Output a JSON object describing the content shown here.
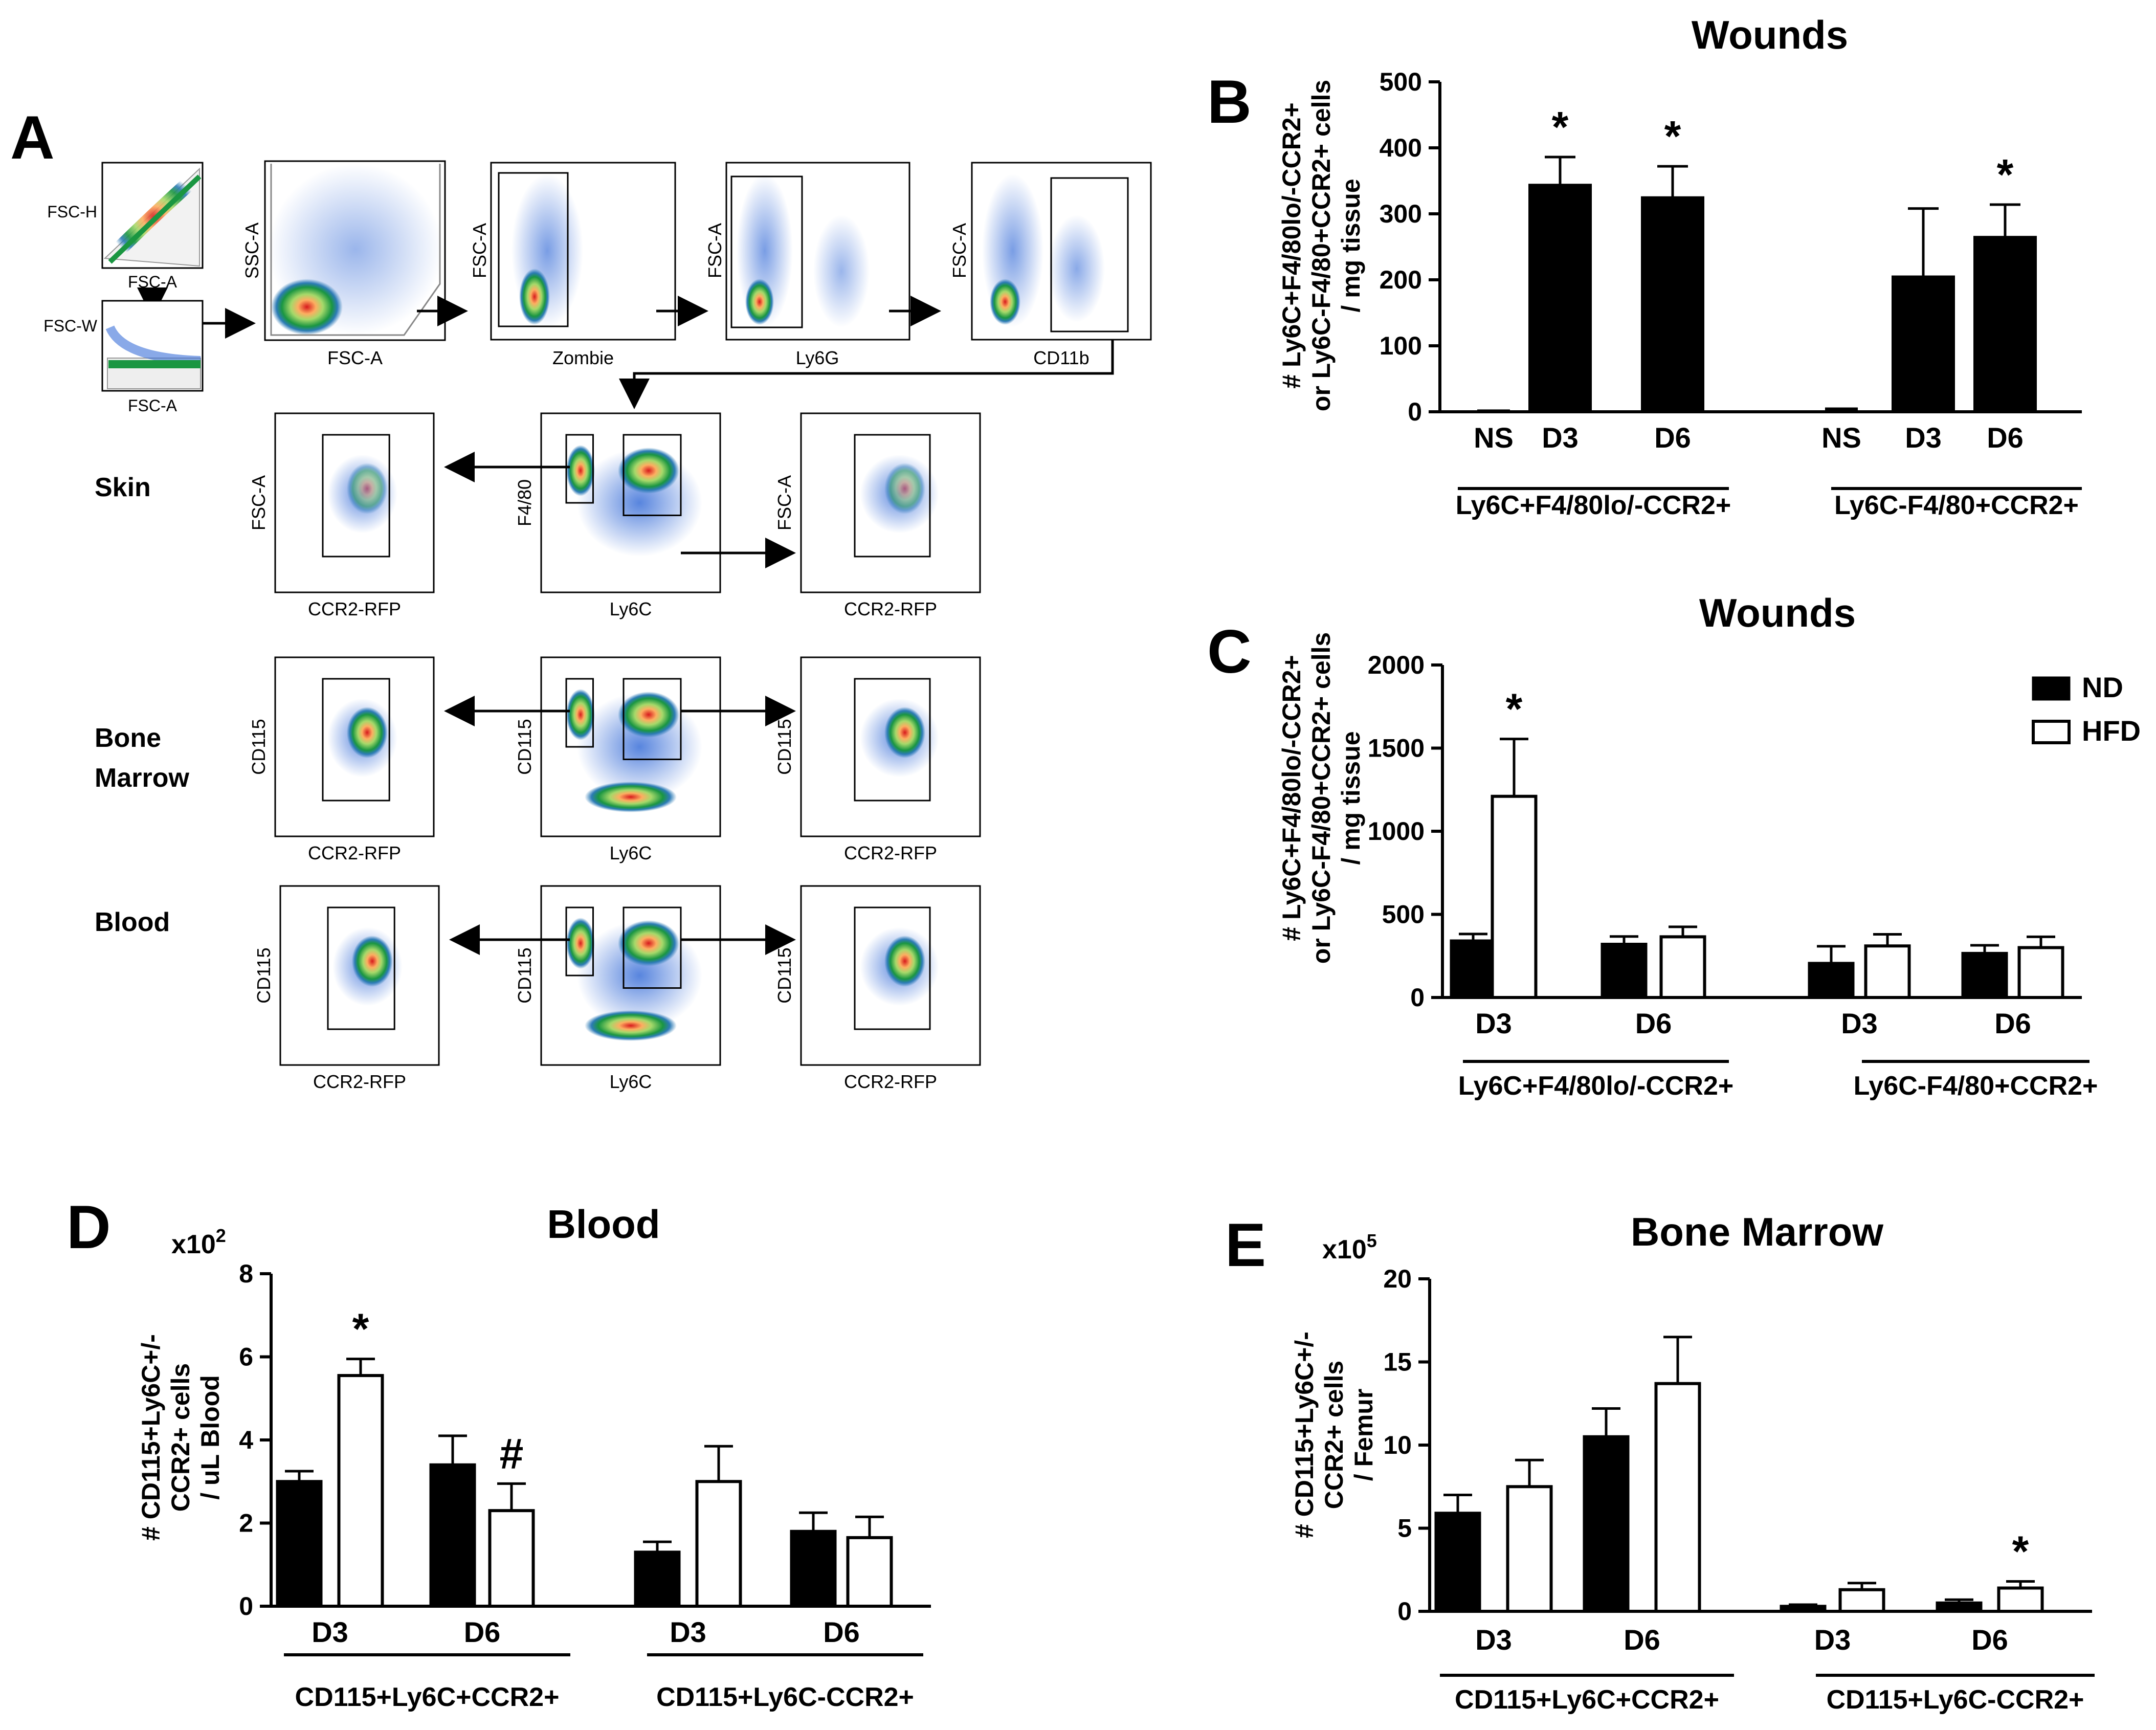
{
  "panel_labels": {
    "A": "A",
    "B": "B",
    "C": "C",
    "D": "D",
    "E": "E"
  },
  "gating": {
    "top_row": [
      {
        "x": "FSC-A",
        "y": "FSC-H"
      },
      {
        "x": "FSC-A",
        "y": "FSC-W"
      },
      {
        "x": "FSC-A",
        "y": "SSC-A"
      },
      {
        "x": "Zombie",
        "y": "FSC-A"
      },
      {
        "x": "Ly6G",
        "y": "FSC-A"
      },
      {
        "x": "CD11b",
        "y": "FSC-A"
      }
    ],
    "tissues": [
      {
        "name": "Skin",
        "left": {
          "x": "CCR2-RFP",
          "y": "FSC-A"
        },
        "center": {
          "x": "Ly6C",
          "y": "F4/80"
        },
        "right": {
          "x": "CCR2-RFP",
          "y": "FSC-A"
        }
      },
      {
        "name": "Bone\nMarrow",
        "left": {
          "x": "CCR2-RFP",
          "y": "CD115"
        },
        "center": {
          "x": "Ly6C",
          "y": "CD115"
        },
        "right": {
          "x": "CCR2-RFP",
          "y": "CD115"
        }
      },
      {
        "name": "Blood",
        "left": {
          "x": "CCR2-RFP",
          "y": "CD115"
        },
        "center": {
          "x": "Ly6C",
          "y": "CD115"
        },
        "right": {
          "x": "CCR2-RFP",
          "y": "CD115"
        }
      }
    ]
  },
  "legend": {
    "nd": "ND",
    "hfd": "HFD"
  },
  "chart_data": [
    {
      "panel": "B",
      "type": "bar",
      "title": "Wounds",
      "ylabel": "# Ly6C+F4/80lo/-CCR2+\nor Ly6C-F4/80+CCR2+ cells\n/ mg tissue",
      "ylim": [
        0,
        500
      ],
      "yticks": [
        0,
        100,
        200,
        300,
        400,
        500
      ],
      "categories": [
        "NS",
        "D3",
        "D6",
        "NS",
        "D3",
        "D6"
      ],
      "groups": [
        "Ly6C+F4/80lo/-CCR2+",
        "Ly6C-F4/80+CCR2+"
      ],
      "series": [
        {
          "values": [
            2,
            344,
            325,
            5,
            205,
            265
          ],
          "errors": [
            1,
            42,
            47,
            2,
            103,
            49
          ],
          "significance": [
            "",
            "*",
            "*",
            "",
            "",
            "*"
          ]
        }
      ]
    },
    {
      "panel": "C",
      "type": "bar",
      "title": "Wounds",
      "ylabel": "# Ly6C+F4/80lo/-CCR2+\nor Ly6C-F4/80+CCR2+ cells\n/ mg tissue",
      "ylim": [
        0,
        2000
      ],
      "yticks": [
        0,
        500,
        1000,
        1500,
        2000
      ],
      "categories": [
        "D3",
        "D6",
        "D3",
        "D6"
      ],
      "groups": [
        "Ly6C+F4/80lo/-CCR2+",
        "Ly6C-F4/80+CCR2+"
      ],
      "legend_position": "top-right",
      "series": [
        {
          "name": "ND",
          "values": [
            340,
            320,
            205,
            265
          ],
          "errors": [
            42,
            47,
            103,
            49
          ],
          "significance": [
            "",
            "",
            "",
            ""
          ]
        },
        {
          "name": "HFD",
          "values": [
            1210,
            365,
            310,
            300
          ],
          "errors": [
            345,
            60,
            70,
            65
          ],
          "significance": [
            "*",
            "",
            "",
            ""
          ]
        }
      ]
    },
    {
      "panel": "D",
      "type": "bar",
      "title": "Blood",
      "multiplier": "x10",
      "multiplier_exp": "2",
      "ylabel": "# CD115+Ly6C+/-\nCCR2+ cells\n/ uL Blood",
      "ylim": [
        0,
        8
      ],
      "yticks": [
        0,
        2,
        4,
        6,
        8
      ],
      "categories": [
        "D3",
        "D6",
        "D3",
        "D6"
      ],
      "groups": [
        "CD115+Ly6C+CCR2+",
        "CD115+Ly6C-CCR2+"
      ],
      "series": [
        {
          "name": "ND",
          "values": [
            3.0,
            3.4,
            1.3,
            1.8
          ],
          "errors": [
            0.25,
            0.7,
            0.25,
            0.45
          ],
          "significance": [
            "",
            "",
            "",
            ""
          ]
        },
        {
          "name": "HFD",
          "values": [
            5.55,
            2.3,
            3.0,
            1.65
          ],
          "errors": [
            0.4,
            0.65,
            0.85,
            0.5
          ],
          "significance": [
            "*",
            "#",
            "",
            ""
          ]
        }
      ]
    },
    {
      "panel": "E",
      "type": "bar",
      "title": "Bone Marrow",
      "multiplier": "x10",
      "multiplier_exp": "5",
      "ylabel": "# CD115+Ly6C+/-\nCCR2+ cells\n/ Femur",
      "ylim": [
        0,
        20
      ],
      "yticks": [
        0,
        5,
        10,
        15,
        20
      ],
      "categories": [
        "D3",
        "D6",
        "D3",
        "D6"
      ],
      "groups": [
        "CD115+Ly6C+CCR2+",
        "CD115+Ly6C-CCR2+"
      ],
      "series": [
        {
          "name": "ND",
          "values": [
            5.9,
            10.5,
            0.3,
            0.5
          ],
          "errors": [
            1.1,
            1.7,
            0.1,
            0.2
          ],
          "significance": [
            "",
            "",
            "",
            ""
          ]
        },
        {
          "name": "HFD",
          "values": [
            7.5,
            13.7,
            1.3,
            1.4
          ],
          "errors": [
            1.6,
            2.8,
            0.4,
            0.4
          ],
          "significance": [
            "",
            "",
            "",
            "*"
          ]
        }
      ]
    }
  ]
}
